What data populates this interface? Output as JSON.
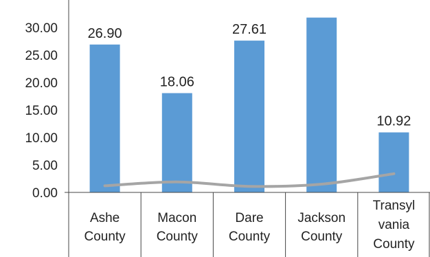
{
  "chart_data": {
    "type": "bar",
    "categories": [
      [
        "Ashe",
        "County"
      ],
      [
        "Macon",
        "County"
      ],
      [
        "Dare",
        "County"
      ],
      [
        "Jackson",
        "County"
      ],
      [
        "Transyl",
        "vania",
        "County"
      ]
    ],
    "series": [
      {
        "type": "bar",
        "values": [
          26.9,
          18.06,
          27.61,
          31.8,
          10.92
        ],
        "data_labels": [
          "26.90",
          "18.06",
          "27.61",
          "",
          "10.92"
        ],
        "color": "#5b9bd5"
      },
      {
        "type": "line",
        "values": [
          1.2,
          1.9,
          1.1,
          1.5,
          3.4
        ],
        "color": "#a5a5a5"
      }
    ],
    "yticks": [
      "0.00",
      "5.00",
      "10.00",
      "15.00",
      "20.00",
      "25.00",
      "30.00"
    ],
    "ylim": [
      0,
      35
    ],
    "grid": false,
    "legend": "none"
  }
}
